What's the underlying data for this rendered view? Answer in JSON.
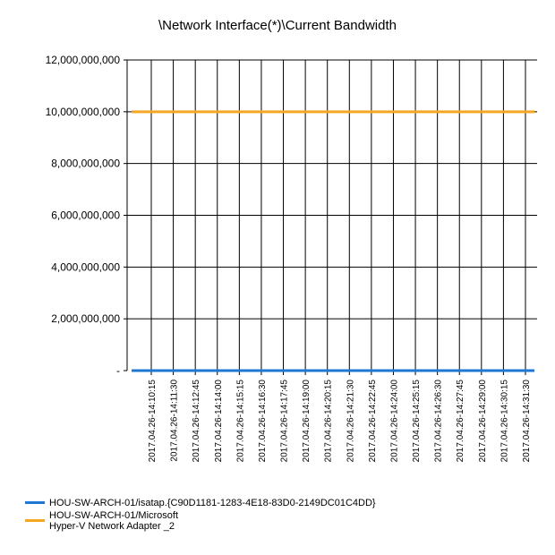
{
  "chart_data": {
    "type": "line",
    "title": "\\Network Interface(*)\\Current Bandwidth",
    "xlabel": "",
    "ylabel": "",
    "ylim": [
      0,
      12000000000
    ],
    "y_ticks": [
      {
        "value": 0,
        "label": "-"
      },
      {
        "value": 2000000000,
        "label": "2,000,000,000"
      },
      {
        "value": 4000000000,
        "label": "4,000,000,000"
      },
      {
        "value": 6000000000,
        "label": "6,000,000,000"
      },
      {
        "value": 8000000000,
        "label": "8,000,000,000"
      },
      {
        "value": 10000000000,
        "label": "10,000,000,000"
      },
      {
        "value": 12000000000,
        "label": "12,000,000,000"
      }
    ],
    "categories": [
      "2017.04.26-14:10:15",
      "2017.04.26-14:11:30",
      "2017.04.26-14:12:45",
      "2017.04.26-14:14:00",
      "2017.04.26-14:15:15",
      "2017.04.26-14:16:30",
      "2017.04.26-14:17:45",
      "2017.04.26-14:19:00",
      "2017.04.26-14:20:15",
      "2017.04.26-14:21:30",
      "2017.04.26-14:22:45",
      "2017.04.26-14:24:00",
      "2017.04.26-14:25:15",
      "2017.04.26-14:26:30",
      "2017.04.26-14:27:45",
      "2017.04.26-14:29:00",
      "2017.04.26-14:30:15",
      "2017.04.26-14:31:30"
    ],
    "series": [
      {
        "name": "HOU-SW-ARCH-01/isatap.{C90D1181-1283-4E18-83D0-2149DC01C4DD}",
        "color": "#1f77d4",
        "values": [
          0,
          0,
          0,
          0,
          0,
          0,
          0,
          0,
          0,
          0,
          0,
          0,
          0,
          0,
          0,
          0,
          0,
          0
        ]
      },
      {
        "name": "HOU-SW-ARCH-01/Microsoft\nHyper-V Network Adapter _2",
        "color": "#f5a623",
        "values": [
          10000000000,
          10000000000,
          10000000000,
          10000000000,
          10000000000,
          10000000000,
          10000000000,
          10000000000,
          10000000000,
          10000000000,
          10000000000,
          10000000000,
          10000000000,
          10000000000,
          10000000000,
          10000000000,
          10000000000,
          10000000000
        ]
      }
    ],
    "grid": true,
    "legend_position": "bottom-left"
  }
}
